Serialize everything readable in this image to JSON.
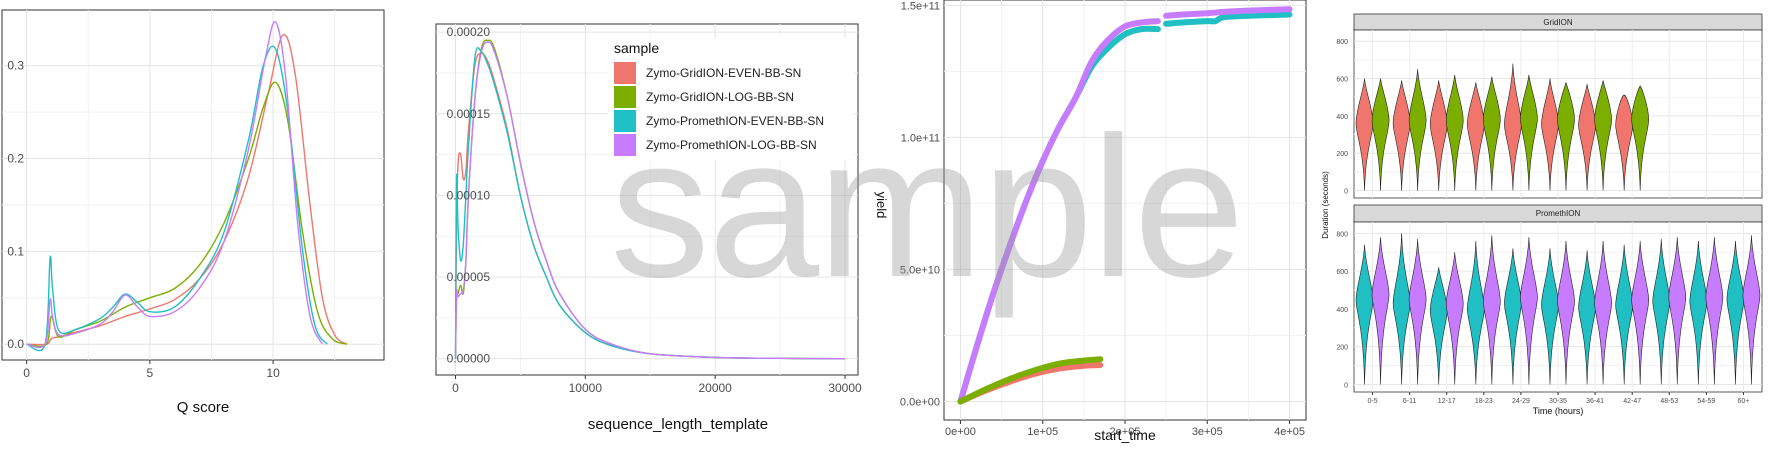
{
  "watermark": "sample",
  "colors": {
    "Zymo-GridION-EVEN-BB-SN": "#f0766d",
    "Zymo-GridION-LOG-BB-SN": "#7cae00",
    "Zymo-PromethION-EVEN-BB-SN": "#1fbfc4",
    "Zymo-PromethION-LOG-BB-SN": "#c77cff"
  },
  "chart_data": [
    {
      "type": "line",
      "xlabel": "Q score",
      "ylabel": "",
      "xlim": [
        -1,
        14.5
      ],
      "ylim": [
        -0.017,
        0.36
      ],
      "xticks": [
        "0",
        "5",
        "10"
      ],
      "yticks": [
        "0.0",
        "0.1",
        "0.2",
        "0.3"
      ],
      "grid": true,
      "series": [
        {
          "name": "Zymo-GridION-EVEN-BB-SN",
          "x": [
            0,
            0.8,
            1.0,
            1.3,
            2,
            3,
            4,
            5,
            6,
            7,
            8,
            9,
            9.8,
            10.4,
            10.9,
            11.5,
            12,
            12.5,
            13
          ],
          "y": [
            0,
            0,
            0.006,
            0.008,
            0.013,
            0.02,
            0.03,
            0.038,
            0.048,
            0.07,
            0.11,
            0.18,
            0.27,
            0.333,
            0.29,
            0.15,
            0.05,
            0.01,
            0
          ]
        },
        {
          "name": "Zymo-GridION-LOG-BB-SN",
          "x": [
            0,
            0.8,
            1.0,
            1.3,
            2,
            3,
            4,
            5,
            6,
            7,
            8,
            9,
            9.6,
            10.1,
            10.6,
            11.2,
            11.8,
            12.4,
            13
          ],
          "y": [
            0,
            0,
            0.03,
            0.008,
            0.016,
            0.025,
            0.04,
            0.05,
            0.06,
            0.085,
            0.13,
            0.2,
            0.255,
            0.282,
            0.24,
            0.12,
            0.035,
            0.006,
            0
          ]
        },
        {
          "name": "Zymo-PromethION-EVEN-BB-SN",
          "x": [
            0,
            0.75,
            0.95,
            1.05,
            1.3,
            2,
            3,
            3.5,
            4,
            4.5,
            5,
            6,
            7,
            8,
            9,
            9.6,
            10.1,
            10.6,
            11.2,
            11.7,
            12.2
          ],
          "y": [
            0,
            0,
            0.093,
            0.06,
            0.015,
            0.016,
            0.028,
            0.04,
            0.054,
            0.045,
            0.035,
            0.04,
            0.07,
            0.12,
            0.22,
            0.3,
            0.318,
            0.25,
            0.1,
            0.02,
            0
          ]
        },
        {
          "name": "Zymo-PromethION-LOG-BB-SN",
          "x": [
            0,
            0.75,
            0.95,
            1.05,
            1.3,
            2,
            3,
            3.5,
            4,
            4.5,
            5,
            6,
            7,
            8,
            9,
            9.7,
            10.1,
            10.5,
            11,
            11.5,
            12
          ],
          "y": [
            0,
            0,
            0.048,
            0.03,
            0.01,
            0.012,
            0.022,
            0.035,
            0.053,
            0.04,
            0.03,
            0.035,
            0.06,
            0.11,
            0.21,
            0.31,
            0.347,
            0.29,
            0.13,
            0.03,
            0
          ]
        }
      ]
    },
    {
      "type": "line",
      "xlabel": "sequence_length_template",
      "ylabel": "",
      "xlim": [
        -1500,
        31000
      ],
      "ylim": [
        -1e-05,
        0.000205
      ],
      "xticks": [
        "0",
        "10000",
        "20000",
        "30000"
      ],
      "yticks": [
        "0.00000",
        "0.00005",
        "0.00010",
        "0.00015",
        "0.00020"
      ],
      "grid": true,
      "legend": {
        "title": "sample",
        "position": "top-right",
        "entries": [
          "Zymo-GridION-EVEN-BB-SN",
          "Zymo-GridION-LOG-BB-SN",
          "Zymo-PromethION-EVEN-BB-SN",
          "Zymo-PromethION-LOG-BB-SN"
        ]
      },
      "series": [
        {
          "name": "Zymo-GridION-EVEN-BB-SN",
          "x": [
            0,
            80,
            200,
            400,
            600,
            800,
            1000,
            1500,
            2000,
            2500,
            3000,
            4000,
            5000,
            6000,
            7000,
            8000,
            10000,
            12000,
            15000,
            20000,
            25000,
            30000
          ],
          "y": [
            0,
            8e-05,
            0.00012,
            0.000125,
            0.00011,
            0.000115,
            0.00014,
            0.00018,
            0.000187,
            0.000182,
            0.00017,
            0.00014,
            0.0001,
            7e-05,
            5e-05,
            3.3e-05,
            1.6e-05,
            8e-06,
            3e-06,
            8e-07,
            2e-07,
            0
          ]
        },
        {
          "name": "Zymo-GridION-LOG-BB-SN",
          "x": [
            0,
            80,
            200,
            400,
            600,
            800,
            1000,
            1500,
            2000,
            2500,
            3000,
            4000,
            5000,
            6000,
            7000,
            8000,
            10000,
            12000,
            15000,
            20000,
            25000,
            30000
          ],
          "y": [
            0,
            3.5e-05,
            4e-05,
            4.5e-05,
            4e-05,
            6e-05,
            0.0001,
            0.00016,
            0.00019,
            0.000195,
            0.00019,
            0.00016,
            0.00012,
            8.5e-05,
            6e-05,
            4e-05,
            1.8e-05,
            9e-06,
            3e-06,
            8e-07,
            2e-07,
            0
          ]
        },
        {
          "name": "Zymo-PromethION-EVEN-BB-SN",
          "x": [
            0,
            80,
            200,
            400,
            600,
            800,
            1000,
            1500,
            2000,
            2500,
            3000,
            4000,
            5000,
            6000,
            7000,
            8000,
            10000,
            12000,
            15000,
            20000,
            25000,
            30000
          ],
          "y": [
            0,
            0.00011,
            8e-05,
            6e-05,
            7e-05,
            0.0001,
            0.00013,
            0.000185,
            0.000188,
            0.00018,
            0.000168,
            0.000138,
            0.0001,
            7e-05,
            5e-05,
            3.3e-05,
            1.6e-05,
            8e-06,
            3e-06,
            8e-07,
            2e-07,
            0
          ]
        },
        {
          "name": "Zymo-PromethION-LOG-BB-SN",
          "x": [
            0,
            80,
            200,
            400,
            600,
            800,
            1000,
            1500,
            2000,
            2500,
            3000,
            4000,
            5000,
            6000,
            7000,
            8000,
            10000,
            12000,
            15000,
            20000,
            25000,
            30000
          ],
          "y": [
            0,
            4e-05,
            3.8e-05,
            4e-05,
            4.2e-05,
            6e-05,
            0.0001,
            0.00016,
            0.000188,
            0.000194,
            0.000188,
            0.00016,
            0.00012,
            8.5e-05,
            6e-05,
            4e-05,
            1.8e-05,
            9e-06,
            3e-06,
            8e-07,
            2e-07,
            0
          ]
        }
      ]
    },
    {
      "type": "scatter",
      "xlabel": "start_time",
      "ylabel": "yield",
      "xlim": [
        -20000,
        420000
      ],
      "ylim": [
        -7000000000,
        152000000000
      ],
      "xticks": [
        "0e+00",
        "1e+05",
        "2e+05",
        "3e+05",
        "4e+05"
      ],
      "yticks": [
        "0.0e+00",
        "5.0e+10",
        "1.0e+11",
        "1.5e+11"
      ],
      "grid": true,
      "series": [
        {
          "name": "Zymo-GridION-EVEN-BB-SN",
          "x": [
            0,
            30000,
            60000,
            90000,
            120000,
            150000,
            170000
          ],
          "y": [
            0,
            4000000000,
            7500000000,
            10500000000,
            12500000000,
            13500000000,
            13800000000
          ]
        },
        {
          "name": "Zymo-GridION-LOG-BB-SN",
          "x": [
            0,
            30000,
            60000,
            90000,
            120000,
            150000,
            170000
          ],
          "y": [
            0,
            4500000000,
            8500000000,
            11800000000,
            14300000000,
            15500000000,
            16000000000
          ]
        },
        {
          "name": "Zymo-PromethION-EVEN-BB-SN",
          "x": [
            0,
            20000,
            40000,
            60000,
            80000,
            100000,
            120000,
            140000,
            160000,
            180000,
            200000,
            220000,
            240000
          ],
          "y": [
            0,
            21000000000,
            41000000000,
            59000000000,
            76000000000,
            91000000000,
            104000000000,
            115000000000,
            127000000000,
            134000000000,
            139000000000,
            141000000000,
            141000000000
          ],
          "x2": [
            250000,
            270000,
            300000,
            310000,
            320000,
            350000,
            400000
          ],
          "y2": [
            143000000000,
            143500000000,
            144000000000,
            144000000000,
            145500000000,
            146000000000,
            146500000000
          ]
        },
        {
          "name": "Zymo-PromethION-LOG-BB-SN",
          "x": [
            0,
            20000,
            40000,
            60000,
            80000,
            100000,
            120000,
            140000,
            160000,
            180000,
            200000,
            220000,
            240000
          ],
          "y": [
            0,
            21000000000,
            41000000000,
            59000000000,
            76000000000,
            91000000000,
            104000000000,
            115000000000,
            129000000000,
            137000000000,
            142000000000,
            143500000000,
            144000000000
          ],
          "x2": [
            250000,
            270000,
            300000,
            320000,
            350000,
            400000
          ],
          "y2": [
            146000000000,
            146500000000,
            147000000000,
            147500000000,
            148000000000,
            148500000000
          ]
        }
      ]
    },
    {
      "type": "violin",
      "xlabel": "Time (hours)",
      "ylabel": "Duration (seconds)",
      "ylim": [
        -40,
        860
      ],
      "yticks": [
        "0",
        "200",
        "400",
        "600",
        "800"
      ],
      "categories": [
        "0-5",
        "6-11",
        "12-17",
        "18-23",
        "24-29",
        "30-35",
        "36-41",
        "42-47",
        "48-53",
        "54-59",
        "60+"
      ],
      "panels": [
        {
          "name": "GridION",
          "series": [
            {
              "name": "Zymo-GridION-EVEN-BB-SN",
              "medians": [
                360,
                360,
                355,
                355,
                355,
                355,
                350,
                350
              ],
              "maxes": [
                600,
                590,
                590,
                580,
                680,
                600,
                570,
                510
              ]
            },
            {
              "name": "Zymo-GridION-LOG-BB-SN",
              "medians": [
                375,
                375,
                375,
                380,
                385,
                380,
                380,
                380
              ],
              "maxes": [
                600,
                650,
                620,
                610,
                620,
                580,
                590,
                560
              ]
            }
          ]
        },
        {
          "name": "PromethION",
          "series": [
            {
              "name": "Zymo-PromethION-EVEN-BB-SN",
              "medians": [
                445,
                430,
                390,
                400,
                430,
                420,
                410,
                420,
                440,
                440,
                450
              ],
              "maxes": [
                740,
                800,
                620,
                760,
                720,
                720,
                710,
                740,
                770,
                760,
                760
              ]
            },
            {
              "name": "Zymo-PromethION-LOG-BB-SN",
              "medians": [
                475,
                450,
                425,
                440,
                460,
                440,
                430,
                445,
                460,
                460,
                470
              ],
              "maxes": [
                780,
                770,
                700,
                790,
                780,
                760,
                760,
                760,
                780,
                780,
                790
              ]
            }
          ]
        }
      ]
    }
  ]
}
